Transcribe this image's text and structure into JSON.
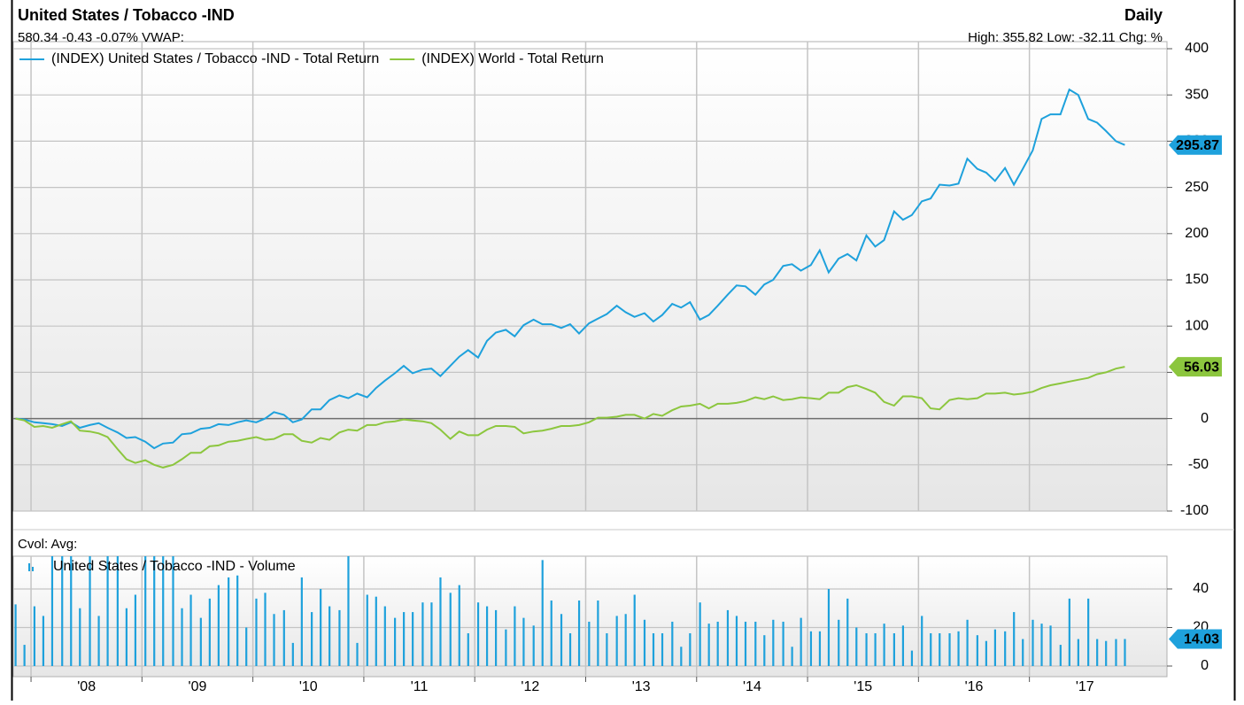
{
  "header": {
    "title": "United States / Tobacco -IND",
    "frequency": "Daily",
    "quote": "580.34 -0.43 -0.07%  VWAP:",
    "stats": "High: 355.82 Low: -32.11 Chg: %"
  },
  "chart_data": [
    {
      "type": "line",
      "x": [
        2007.86,
        2007.94,
        2008.03,
        2008.11,
        2008.19,
        2008.28,
        2008.36,
        2008.44,
        2008.53,
        2008.61,
        2008.69,
        2008.78,
        2008.86,
        2008.94,
        2009.03,
        2009.11,
        2009.19,
        2009.28,
        2009.36,
        2009.44,
        2009.53,
        2009.61,
        2009.69,
        2009.78,
        2009.86,
        2009.94,
        2010.03,
        2010.11,
        2010.19,
        2010.28,
        2010.36,
        2010.44,
        2010.53,
        2010.61,
        2010.69,
        2010.78,
        2010.86,
        2010.94,
        2011.03,
        2011.11,
        2011.19,
        2011.28,
        2011.36,
        2011.44,
        2011.53,
        2011.61,
        2011.69,
        2011.78,
        2011.86,
        2011.94,
        2012.03,
        2012.11,
        2012.19,
        2012.28,
        2012.36,
        2012.44,
        2012.53,
        2012.61,
        2012.69,
        2012.78,
        2012.86,
        2012.94,
        2013.03,
        2013.11,
        2013.19,
        2013.28,
        2013.36,
        2013.44,
        2013.53,
        2013.61,
        2013.69,
        2013.78,
        2013.86,
        2013.94,
        2014.03,
        2014.11,
        2014.19,
        2014.28,
        2014.36,
        2014.44,
        2014.53,
        2014.61,
        2014.69,
        2014.78,
        2014.86,
        2014.94,
        2015.03,
        2015.11,
        2015.19,
        2015.28,
        2015.36,
        2015.44,
        2015.53,
        2015.61,
        2015.69,
        2015.78,
        2015.86,
        2015.94,
        2016.03,
        2016.11,
        2016.19,
        2016.28,
        2016.36,
        2016.44,
        2016.53,
        2016.61,
        2016.69,
        2016.78,
        2016.86,
        2016.94,
        2017.03,
        2017.11,
        2017.19,
        2017.28,
        2017.36,
        2017.44,
        2017.53,
        2017.61,
        2017.69,
        2017.78,
        2017.86
      ],
      "series": [
        {
          "name": "(INDEX) United States / Tobacco -IND - Total Return",
          "color": "#1ea1dc",
          "values": [
            0,
            -1,
            -4,
            -5,
            -6,
            -8,
            -4,
            -10,
            -7,
            -5,
            -10,
            -15,
            -21,
            -20,
            -25,
            -32.11,
            -27,
            -26,
            -17,
            -16,
            -11,
            -10,
            -6,
            -7,
            -4,
            -2,
            -4,
            0,
            7,
            4,
            -4,
            -1,
            10,
            10,
            20,
            25,
            22,
            27,
            23,
            33,
            41,
            49,
            57,
            49,
            53,
            54,
            46,
            57,
            67,
            74,
            66,
            84,
            93,
            96,
            89,
            101,
            107,
            102,
            102,
            98,
            102,
            92,
            103,
            108,
            113,
            122,
            115,
            110,
            114,
            105,
            112,
            124,
            120,
            126,
            107,
            112,
            122,
            134,
            144,
            143,
            134,
            145,
            150,
            165,
            167,
            160,
            166,
            182,
            158,
            173,
            178,
            171,
            198,
            186,
            193,
            224,
            215,
            220,
            235,
            238,
            253,
            252,
            254,
            281,
            270,
            266,
            257,
            271,
            253,
            270,
            290,
            324,
            329,
            329,
            355.82,
            350,
            324,
            320,
            311,
            300,
            295.87
          ]
        },
        {
          "name": "(INDEX) World - Total Return",
          "color": "#8cc63e",
          "values": [
            0,
            -2,
            -9,
            -8,
            -10,
            -6,
            -3,
            -13,
            -14,
            -16,
            -20,
            -33,
            -44,
            -48,
            -45,
            -50,
            -53,
            -50,
            -44,
            -37,
            -37,
            -30,
            -29,
            -25,
            -24,
            -22,
            -20,
            -23,
            -22,
            -17,
            -17,
            -24,
            -26,
            -21,
            -23,
            -15,
            -12,
            -13,
            -7,
            -7,
            -4,
            -3,
            -1,
            -2,
            -3,
            -5,
            -12,
            -22,
            -14,
            -18,
            -18,
            -12,
            -8,
            -8,
            -9,
            -16,
            -14,
            -13,
            -11,
            -8,
            -8,
            -7,
            -4,
            1,
            1,
            2,
            4,
            4,
            0,
            5,
            3,
            9,
            13,
            14,
            16,
            11,
            16,
            16,
            17,
            19,
            23,
            21,
            24,
            20,
            21,
            23,
            22,
            21,
            28,
            28,
            34,
            36,
            32,
            28,
            18,
            14,
            24,
            24,
            22,
            11,
            10,
            20,
            22,
            21,
            22,
            27,
            27,
            28,
            26,
            27,
            29,
            33,
            36,
            38,
            40,
            42,
            44,
            48,
            50,
            54,
            56.03
          ]
        }
      ],
      "xlim": [
        2007.84,
        2018.24
      ],
      "xticks": [
        2008,
        2009,
        2010,
        2011,
        2012,
        2013,
        2014,
        2015,
        2016,
        2017
      ],
      "ylim": [
        -100,
        400
      ],
      "yticks": [
        -100,
        -50,
        0,
        50,
        100,
        150,
        200,
        250,
        300,
        350,
        400
      ],
      "grid": true
    },
    {
      "type": "bar",
      "title": "Cvol:  Avg:",
      "x": [
        2007.86,
        2007.94,
        2008.03,
        2008.11,
        2008.19,
        2008.28,
        2008.36,
        2008.44,
        2008.53,
        2008.61,
        2008.69,
        2008.78,
        2008.86,
        2008.94,
        2009.03,
        2009.11,
        2009.19,
        2009.28,
        2009.36,
        2009.44,
        2009.53,
        2009.61,
        2009.69,
        2009.78,
        2009.86,
        2009.94,
        2010.03,
        2010.11,
        2010.19,
        2010.28,
        2010.36,
        2010.44,
        2010.53,
        2010.61,
        2010.69,
        2010.78,
        2010.86,
        2010.94,
        2011.03,
        2011.11,
        2011.19,
        2011.28,
        2011.36,
        2011.44,
        2011.53,
        2011.61,
        2011.69,
        2011.78,
        2011.86,
        2011.94,
        2012.03,
        2012.11,
        2012.19,
        2012.28,
        2012.36,
        2012.44,
        2012.53,
        2012.61,
        2012.69,
        2012.78,
        2012.86,
        2012.94,
        2013.03,
        2013.11,
        2013.19,
        2013.28,
        2013.36,
        2013.44,
        2013.53,
        2013.61,
        2013.69,
        2013.78,
        2013.86,
        2013.94,
        2014.03,
        2014.11,
        2014.19,
        2014.28,
        2014.36,
        2014.44,
        2014.53,
        2014.61,
        2014.69,
        2014.78,
        2014.86,
        2014.94,
        2015.03,
        2015.11,
        2015.19,
        2015.28,
        2015.36,
        2015.44,
        2015.53,
        2015.61,
        2015.69,
        2015.78,
        2015.86,
        2015.94,
        2016.03,
        2016.11,
        2016.19,
        2016.28,
        2016.36,
        2016.44,
        2016.53,
        2016.61,
        2016.69,
        2016.78,
        2016.86,
        2016.94,
        2017.03,
        2017.11,
        2017.19,
        2017.28,
        2017.36,
        2017.44,
        2017.53,
        2017.61,
        2017.69,
        2017.78,
        2017.86
      ],
      "series": [
        {
          "name": "United States / Tobacco -IND - Volume",
          "color": "#1ea1dc",
          "values": [
            32,
            11,
            31,
            26,
            60,
            60,
            60,
            30,
            60,
            26,
            60,
            60,
            30,
            37,
            60,
            60,
            60,
            60,
            30,
            37,
            25,
            35,
            42,
            46,
            47,
            20,
            35,
            38,
            27,
            29,
            12,
            46,
            28,
            40,
            31,
            29,
            60,
            12,
            37,
            36,
            31,
            25,
            28,
            28,
            33,
            33,
            46,
            38,
            42,
            17,
            33,
            31,
            29,
            19,
            31,
            25,
            21,
            55,
            34,
            27,
            17,
            34,
            23,
            34,
            17,
            26,
            27,
            37,
            24,
            17,
            17,
            23,
            10,
            17,
            33,
            22,
            23,
            29,
            26,
            23,
            23,
            16,
            24,
            23,
            10,
            25,
            18,
            18,
            40,
            24,
            35,
            20,
            17,
            17,
            22,
            17,
            21,
            8,
            26,
            17,
            17,
            17,
            18,
            24,
            16,
            13,
            19,
            18,
            28,
            14,
            24,
            22,
            21,
            11,
            35,
            14,
            35,
            14,
            13,
            14,
            14.03
          ]
        }
      ],
      "xlim": [
        2007.84,
        2018.24
      ],
      "xticks": [
        {
          "value": 2008,
          "label": "'08"
        },
        {
          "value": 2009,
          "label": "'09"
        },
        {
          "value": 2010,
          "label": "'10"
        },
        {
          "value": 2011,
          "label": "'11"
        },
        {
          "value": 2012,
          "label": "'12"
        },
        {
          "value": 2013,
          "label": "'13"
        },
        {
          "value": 2014,
          "label": "'14"
        },
        {
          "value": 2015,
          "label": "'15"
        },
        {
          "value": 2016,
          "label": "'16"
        },
        {
          "value": 2017,
          "label": "'17"
        }
      ],
      "ylim": [
        0,
        57
      ],
      "yticks": [
        0,
        20,
        40
      ],
      "grid": true
    }
  ]
}
